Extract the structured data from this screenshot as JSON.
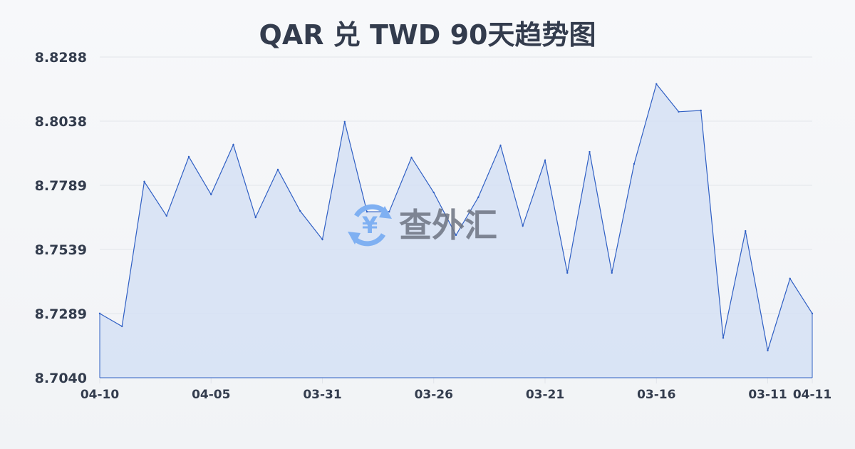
{
  "chart_data": {
    "type": "area",
    "title": "QAR 兑 TWD 90天趋势图",
    "xlabel": "",
    "ylabel": "",
    "ylim": [
      8.704,
      8.8288
    ],
    "y_ticks": [
      "8.8288",
      "8.8038",
      "8.7789",
      "8.7539",
      "8.7289",
      "8.7040"
    ],
    "x_ticks": [
      {
        "label": "04-10",
        "index": 0
      },
      {
        "label": "04-05",
        "index": 5
      },
      {
        "label": "03-31",
        "index": 10
      },
      {
        "label": "03-26",
        "index": 15
      },
      {
        "label": "03-21",
        "index": 20
      },
      {
        "label": "03-16",
        "index": 25
      },
      {
        "label": "03-11",
        "index": 30
      },
      {
        "label": "04-11",
        "index": 32
      }
    ],
    "values": [
      8.729,
      8.724,
      8.7803,
      8.767,
      8.79,
      8.7753,
      8.7947,
      8.7664,
      8.785,
      8.7689,
      8.7578,
      8.8036,
      8.7686,
      8.7686,
      8.7897,
      8.7761,
      8.7595,
      8.7742,
      8.7944,
      8.7631,
      8.7886,
      8.7448,
      8.7919,
      8.7448,
      8.7872,
      8.8183,
      8.8075,
      8.808,
      8.7195,
      8.7611,
      8.7146,
      8.7426,
      8.729
    ],
    "grid": true,
    "colors": {
      "line": "#2f5fc4",
      "fill": "#d5e0f5",
      "grid": "#e2e5ea"
    }
  },
  "watermark": {
    "text": "查外汇",
    "icon": "yen-exchange-icon",
    "color": "#5b9cf0"
  }
}
